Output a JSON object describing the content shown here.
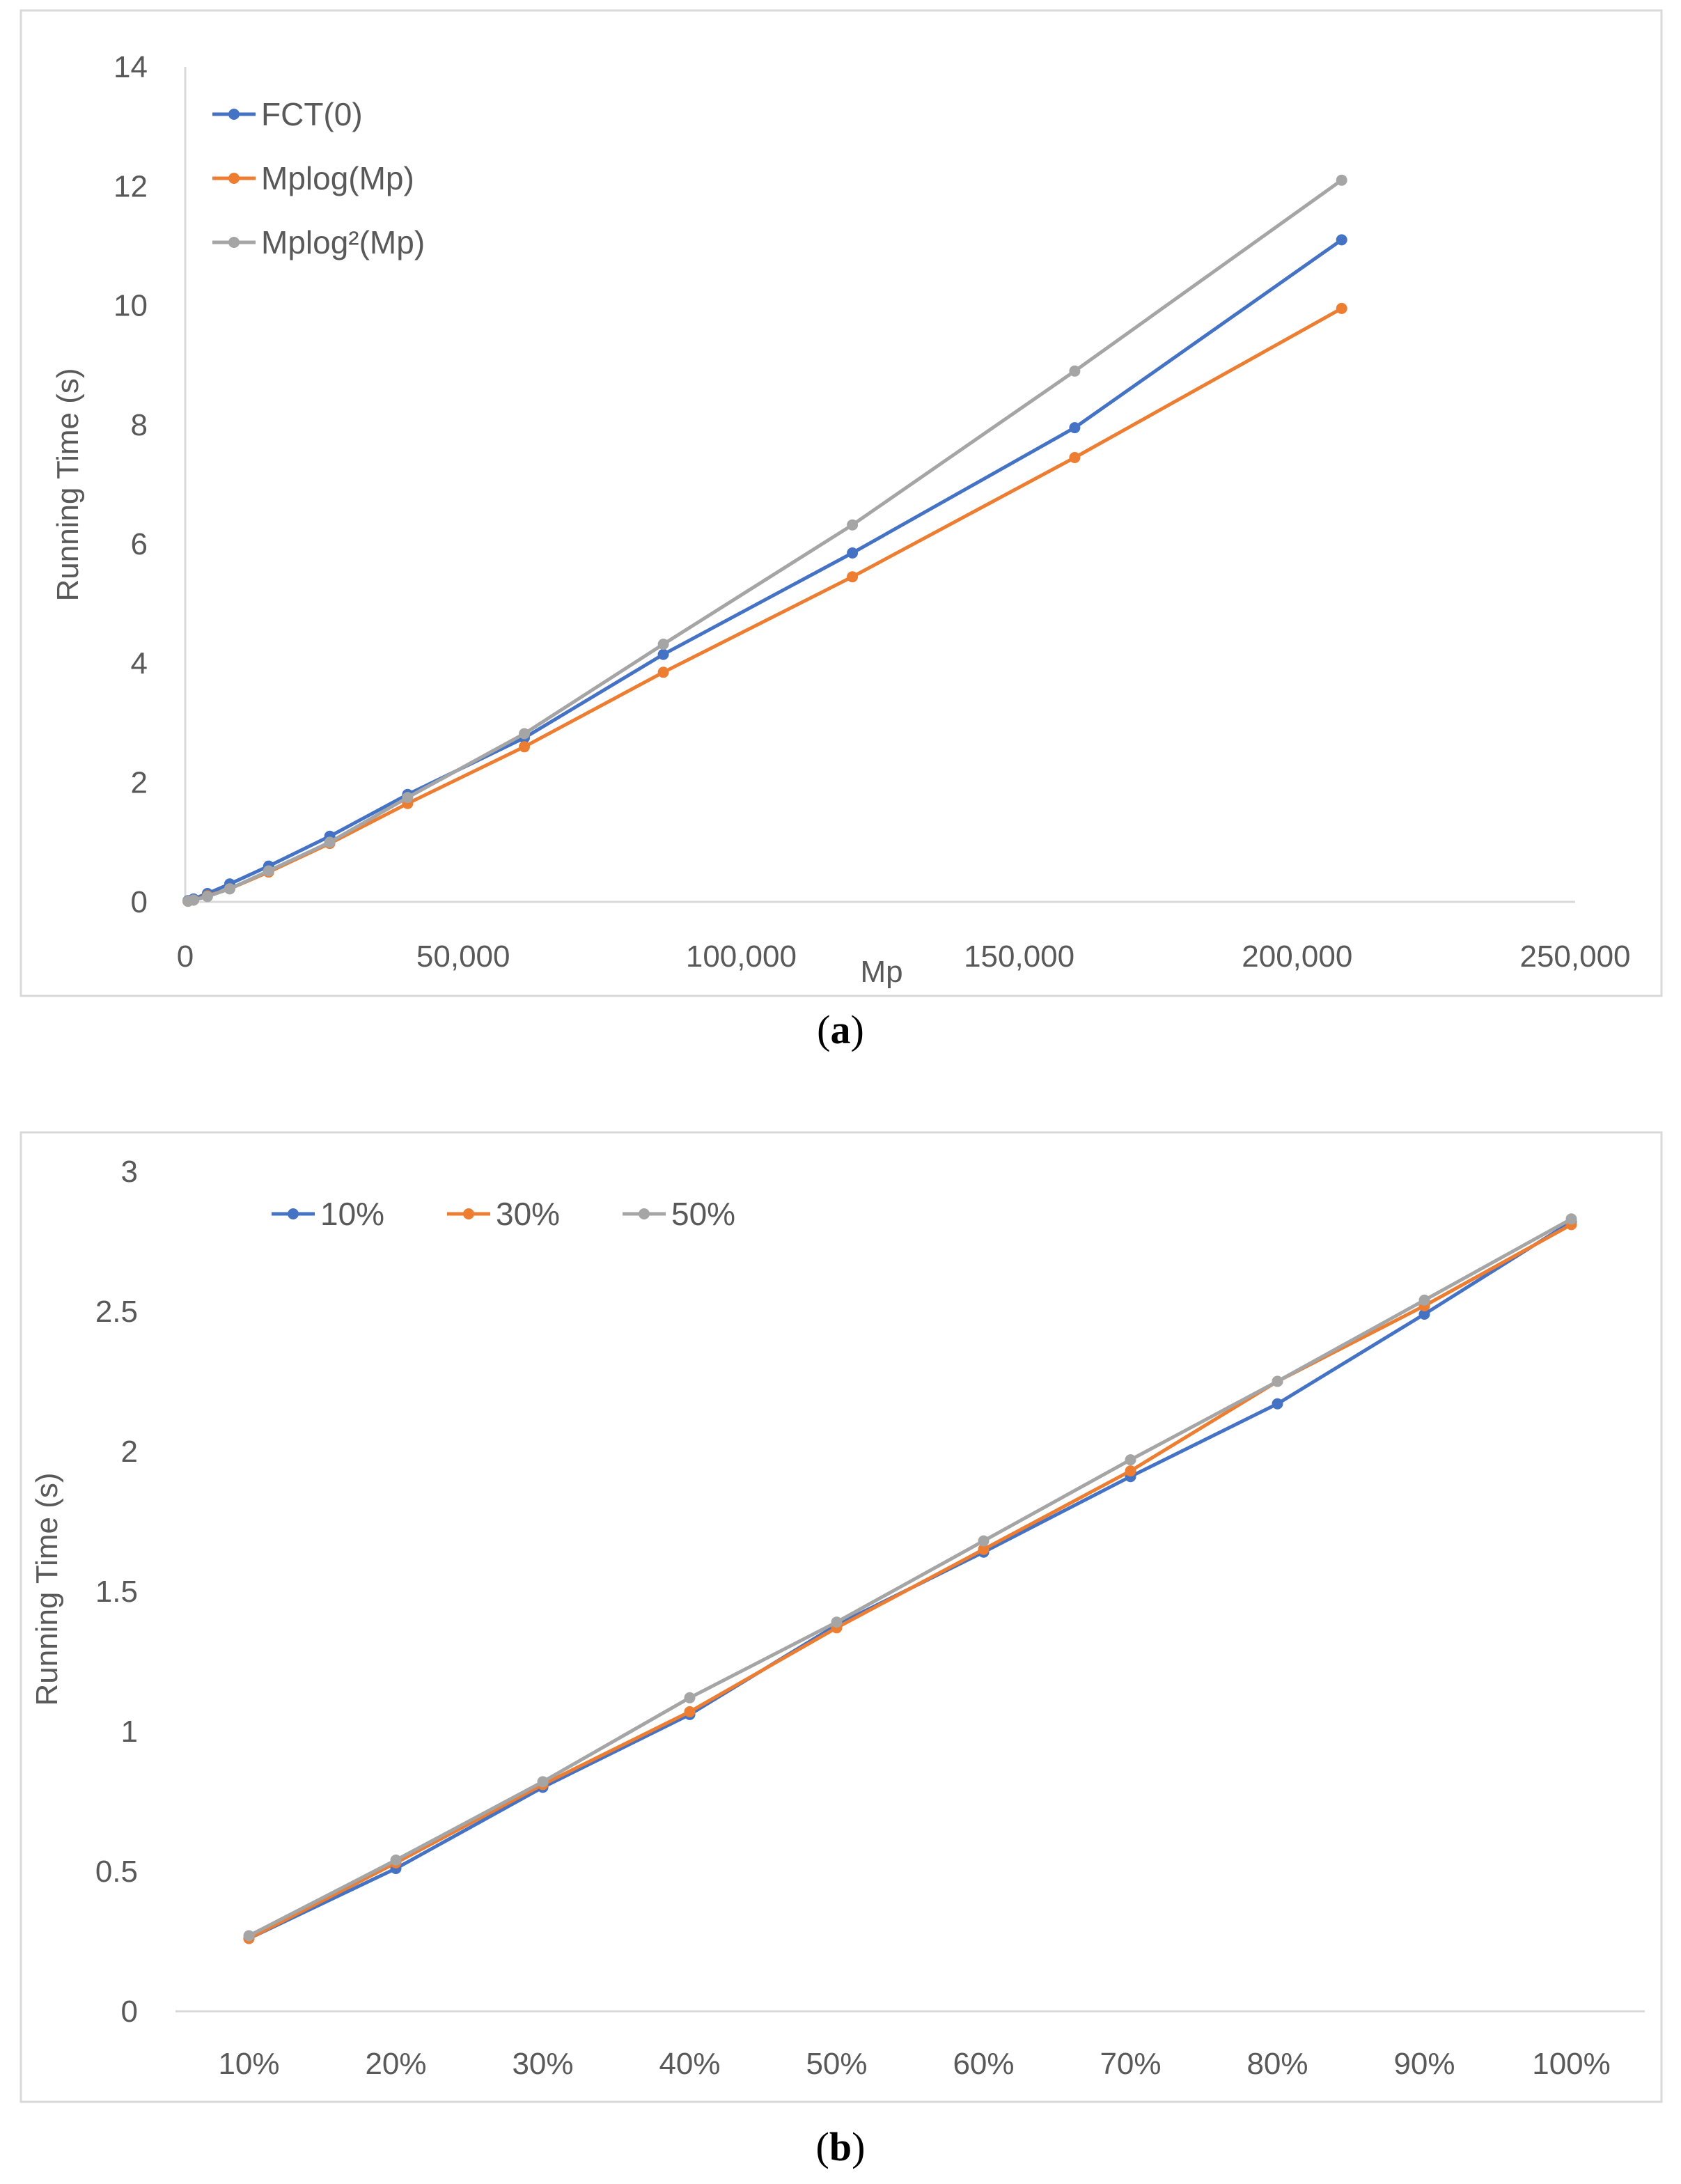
{
  "colors": {
    "blue": "#4472C4",
    "orange": "#ED7D31",
    "gray": "#A5A5A5",
    "axis": "#D9D9D9",
    "text": "#595959"
  },
  "chart_data": [
    {
      "id": "a",
      "type": "line",
      "caption_open": "(",
      "caption_letter": "a",
      "caption_close": ")",
      "xlabel": "Mp",
      "ylabel": "Running Time (s)",
      "xlim": [
        0,
        250000
      ],
      "ylim": [
        0,
        14
      ],
      "xticks": [
        0,
        50000,
        100000,
        150000,
        200000,
        250000
      ],
      "xtick_labels": [
        "0",
        "50,000",
        "100,000",
        "150,000",
        "200,000",
        "250,000"
      ],
      "yticks": [
        0,
        2,
        4,
        6,
        8,
        10,
        12,
        14
      ],
      "ytick_labels": [
        "0",
        "2",
        "4",
        "6",
        "8",
        "10",
        "12",
        "14"
      ],
      "grid": false,
      "legend_position": "top-left",
      "x": [
        500,
        1500,
        4000,
        8000,
        15000,
        26000,
        40000,
        61000,
        86000,
        120000,
        160000,
        208000
      ],
      "series": [
        {
          "name": "FCT(0)",
          "color": "#4472C4",
          "values": [
            0.02,
            0.05,
            0.14,
            0.3,
            0.6,
            1.1,
            1.8,
            2.75,
            4.15,
            5.85,
            7.95,
            11.1
          ]
        },
        {
          "name": "Mplog(Mp)",
          "color": "#ED7D31",
          "values": [
            0.01,
            0.03,
            0.1,
            0.22,
            0.5,
            0.98,
            1.65,
            2.6,
            3.85,
            5.45,
            7.45,
            9.95
          ]
        },
        {
          "name": "Mplog²(Mp)",
          "color": "#A5A5A5",
          "values": [
            0.01,
            0.03,
            0.09,
            0.22,
            0.52,
            1.0,
            1.75,
            2.82,
            4.32,
            6.32,
            8.9,
            12.1
          ]
        }
      ]
    },
    {
      "id": "b",
      "type": "line",
      "caption_open": "(",
      "caption_letter": "b",
      "caption_close": ")",
      "xlabel": "",
      "ylabel": "Running Time (s)",
      "ylim": [
        0,
        3
      ],
      "yticks": [
        0,
        0.5,
        1,
        1.5,
        2,
        2.5,
        3
      ],
      "ytick_labels": [
        "0",
        "0.5",
        "1",
        "1.5",
        "2",
        "2.5",
        "3"
      ],
      "grid": false,
      "legend_position": "top-left",
      "categories": [
        "10%",
        "20%",
        "30%",
        "40%",
        "50%",
        "60%",
        "70%",
        "80%",
        "90%",
        "100%"
      ],
      "series": [
        {
          "name": "10%",
          "color": "#4472C4",
          "values": [
            0.26,
            0.51,
            0.8,
            1.06,
            1.38,
            1.64,
            1.91,
            2.17,
            2.49,
            2.82
          ]
        },
        {
          "name": "30%",
          "color": "#ED7D31",
          "values": [
            0.26,
            0.53,
            0.81,
            1.07,
            1.37,
            1.65,
            1.93,
            2.25,
            2.52,
            2.81
          ]
        },
        {
          "name": "50%",
          "color": "#A5A5A5",
          "values": [
            0.27,
            0.54,
            0.82,
            1.12,
            1.39,
            1.68,
            1.97,
            2.25,
            2.54,
            2.83
          ]
        }
      ]
    }
  ]
}
